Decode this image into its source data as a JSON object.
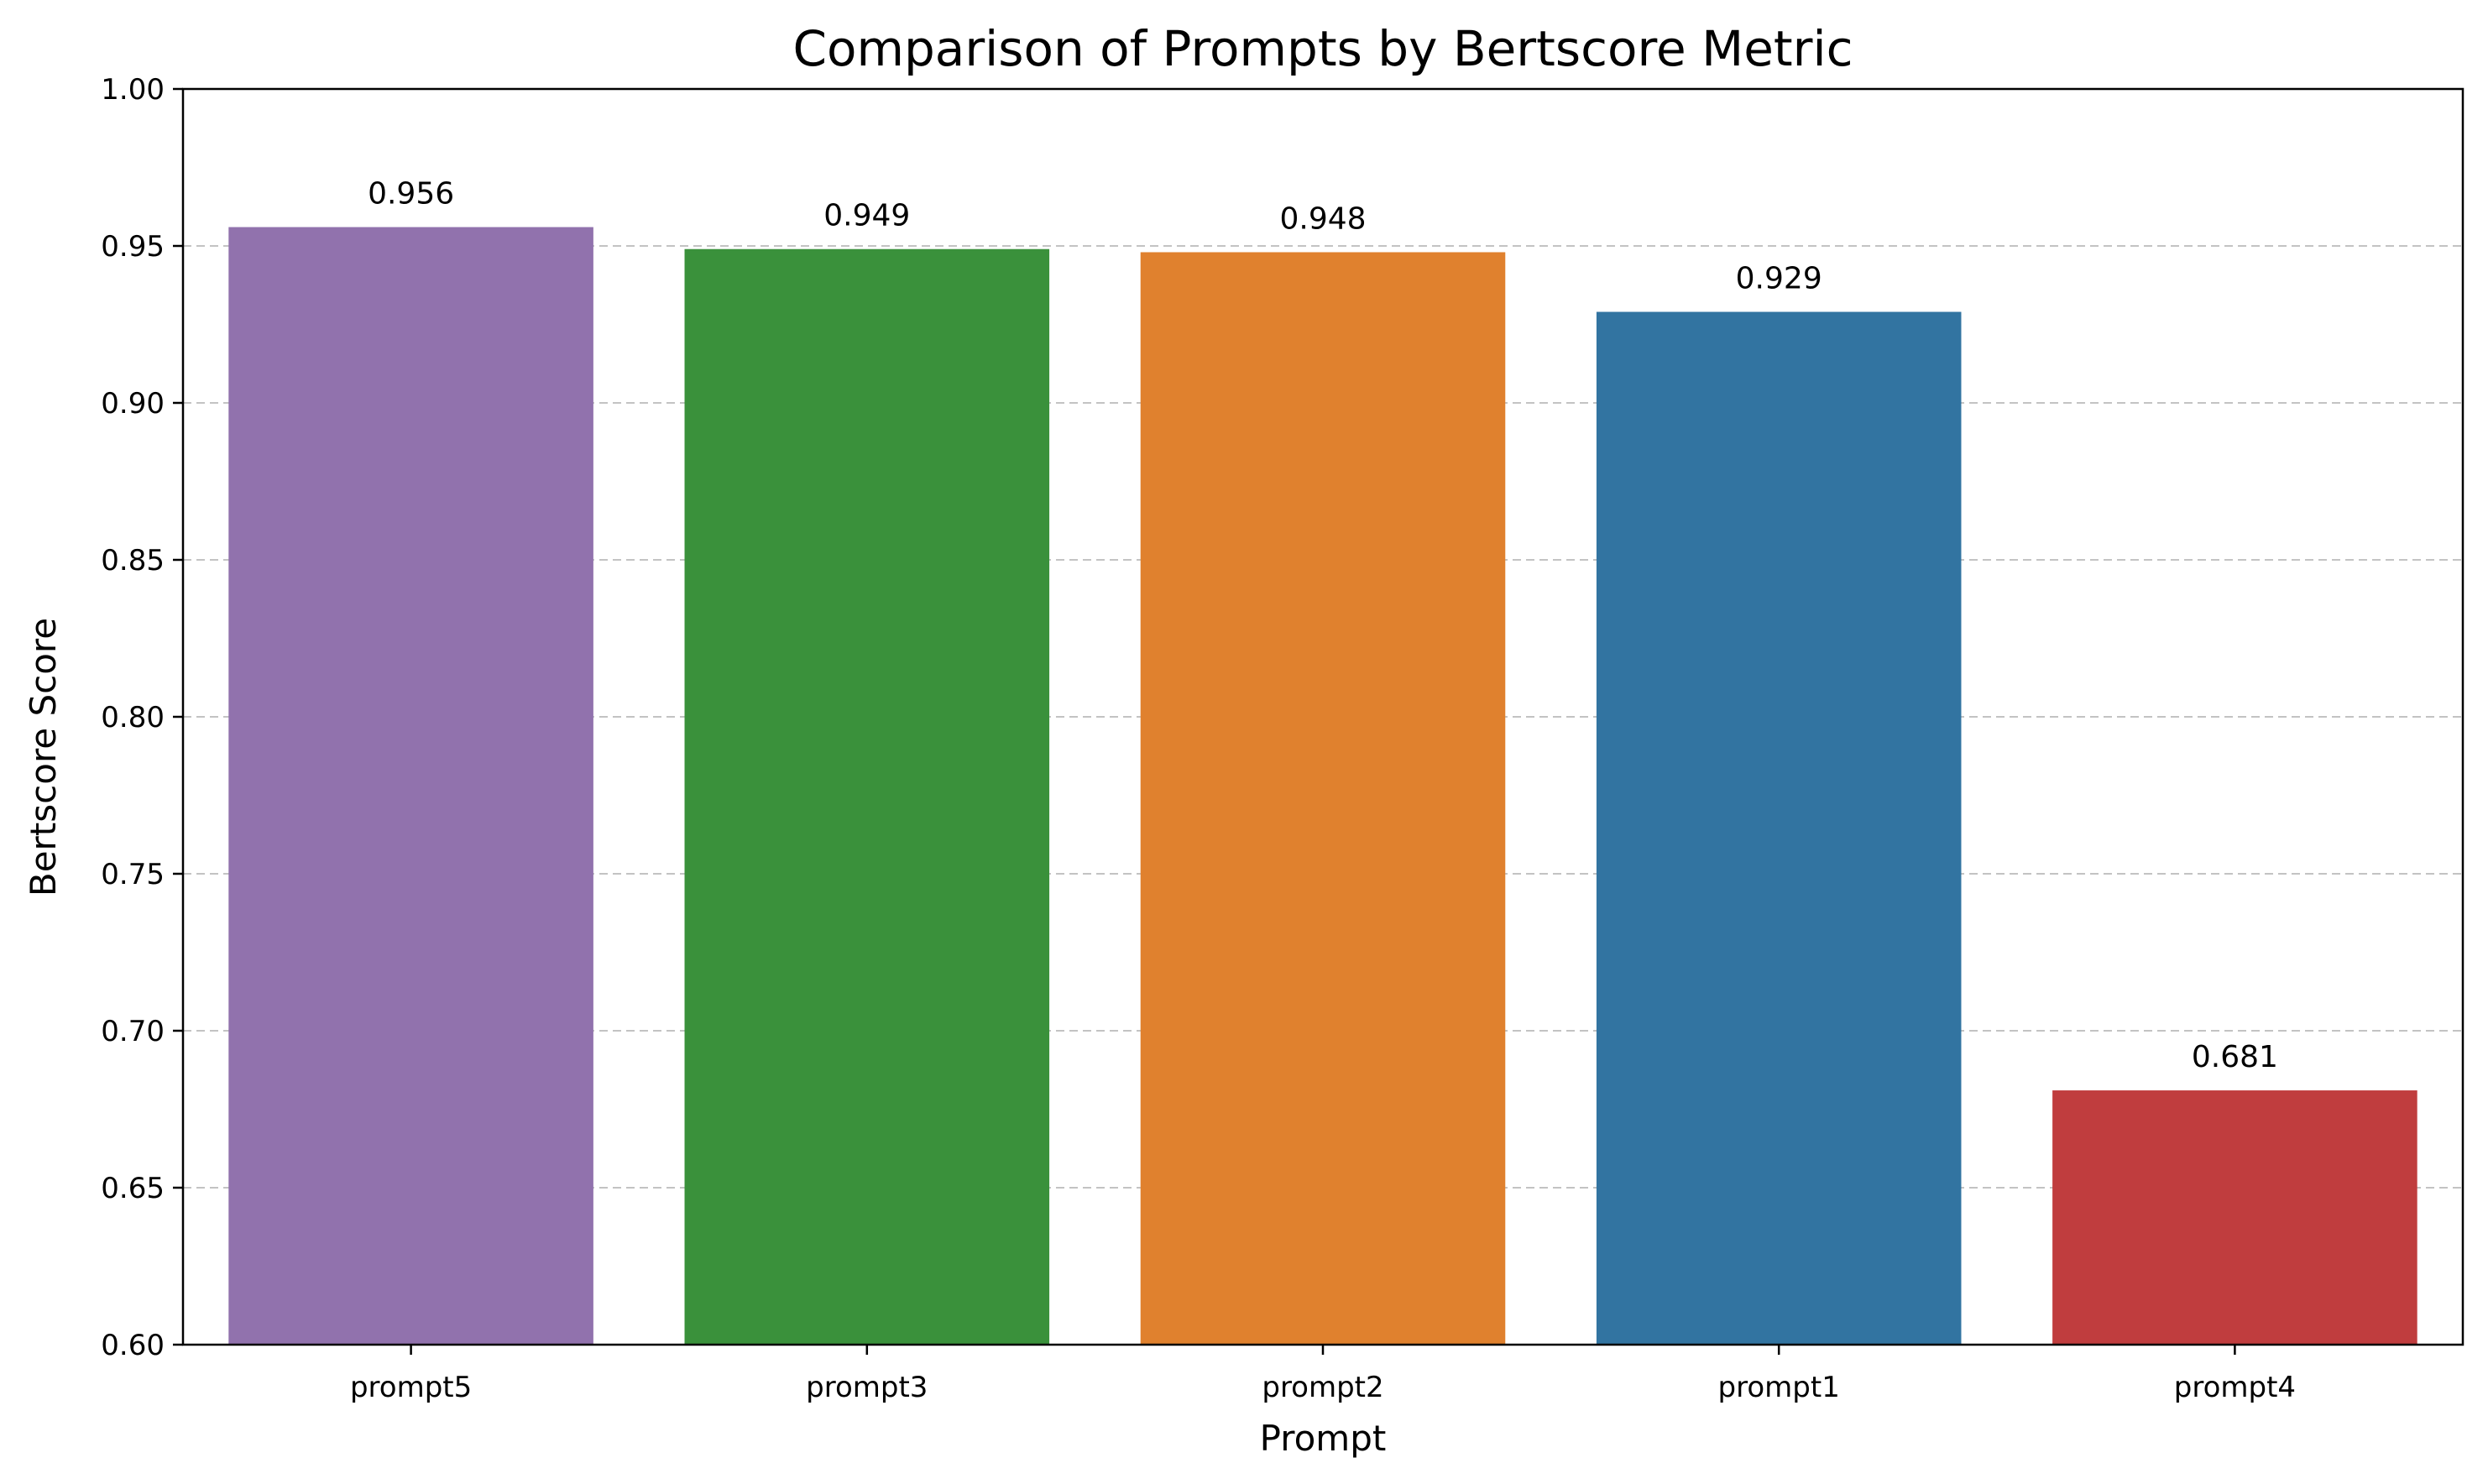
{
  "chart_data": {
    "type": "bar",
    "title": "Comparison of Prompts by Bertscore Metric",
    "xlabel": "Prompt",
    "ylabel": "Bertscore Score",
    "categories": [
      "prompt5",
      "prompt3",
      "prompt2",
      "prompt1",
      "prompt4"
    ],
    "values": [
      0.956,
      0.949,
      0.948,
      0.929,
      0.681
    ],
    "value_labels": [
      "0.956",
      "0.949",
      "0.948",
      "0.929",
      "0.681"
    ],
    "colors": [
      "#9172ad",
      "#3a913b",
      "#e0812e",
      "#3274a1",
      "#c03d3e"
    ],
    "ylim": [
      0.6,
      1.0
    ],
    "yticks": [
      0.6,
      0.65,
      0.7,
      0.75,
      0.8,
      0.85,
      0.9,
      0.95,
      1.0
    ],
    "ytick_labels": [
      "0.60",
      "0.65",
      "0.70",
      "0.75",
      "0.80",
      "0.85",
      "0.90",
      "0.95",
      "1.00"
    ],
    "grid": "y-dashed",
    "legend": "none"
  }
}
